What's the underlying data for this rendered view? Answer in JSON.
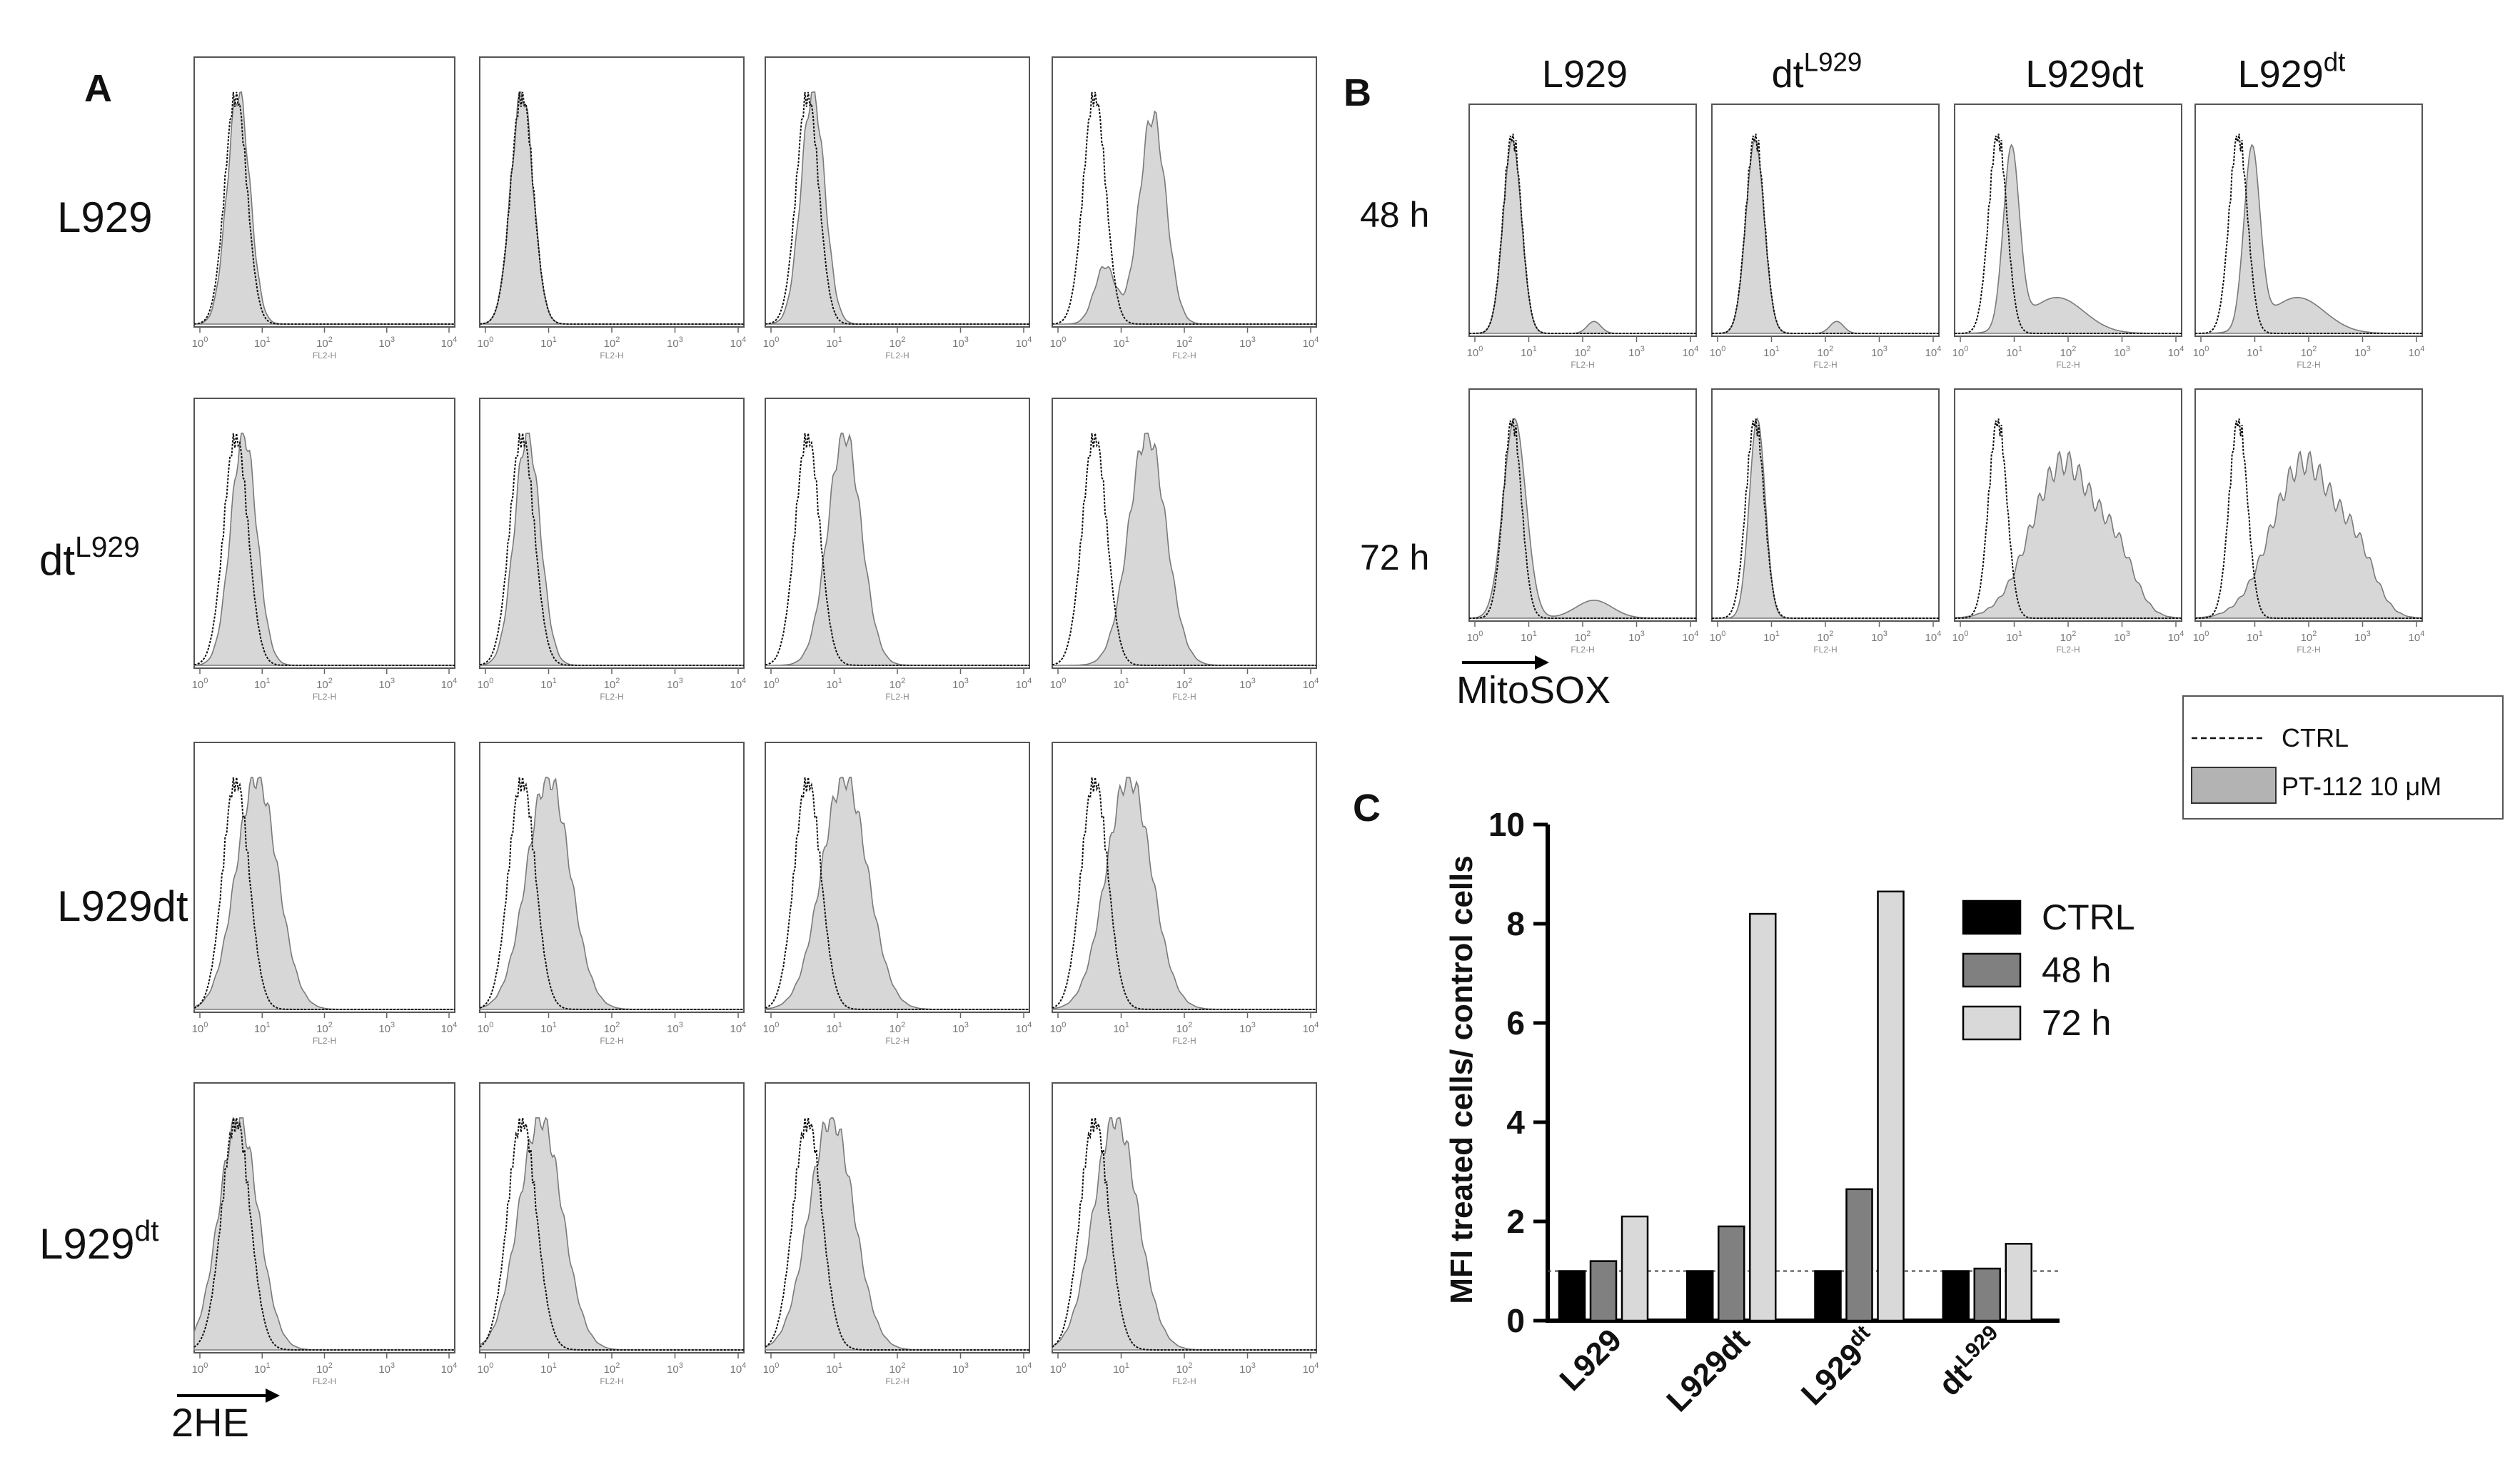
{
  "panel_labels": {
    "a": "A",
    "b": "B",
    "c": "C"
  },
  "panel_a": {
    "rows": [
      {
        "label": "L929",
        "sup": ""
      },
      {
        "label": "dt",
        "sup": "L929"
      },
      {
        "label": "L929dt",
        "sup": ""
      },
      {
        "label": "L929",
        "sup": "dt"
      }
    ],
    "x_axis_label": "FL2-H",
    "tick_bases": [
      "10",
      "10",
      "10",
      "10",
      "10"
    ],
    "tick_exponents": [
      "0",
      "1",
      "2",
      "3",
      "4"
    ],
    "stain_label": "2HE",
    "shifts": [
      [
        0.01,
        0.0,
        0.02,
        0.22
      ],
      [
        0.03,
        0.02,
        0.14,
        0.2
      ],
      [
        0.08,
        0.1,
        0.14,
        0.13
      ],
      [
        0.01,
        0.07,
        0.09,
        0.08
      ]
    ]
  },
  "panel_b": {
    "columns": [
      {
        "label": "L929",
        "sup": ""
      },
      {
        "label": "dt",
        "sup": "L929"
      },
      {
        "label": "L929dt",
        "sup": ""
      },
      {
        "label": "L929",
        "sup": "dt"
      }
    ],
    "rows": [
      "48 h",
      "72 h"
    ],
    "x_axis_label": "FL2-H",
    "stain_label": "MitoSOX"
  },
  "legend_hist": {
    "ctrl": "CTRL",
    "treated": "PT-112 10 μM"
  },
  "chart_data": {
    "type": "bar",
    "title": "",
    "xlabel": "",
    "ylabel": "MFI treated cells/ control cells",
    "ylim": [
      0,
      10
    ],
    "yticks": [
      "0",
      "2",
      "4",
      "6",
      "8",
      "10"
    ],
    "categories": [
      {
        "label": "L929",
        "sup": ""
      },
      {
        "label": "L929dt",
        "sup": ""
      },
      {
        "label": "L929",
        "sup": "dt"
      },
      {
        "label": "dt",
        "sup": "L929"
      }
    ],
    "series": [
      {
        "name": "CTRL",
        "color": "#000000",
        "values": [
          1,
          1,
          1,
          1
        ]
      },
      {
        "name": "48 h",
        "color": "#808080",
        "values": [
          1.2,
          1.9,
          2.65,
          1.05
        ]
      },
      {
        "name": "72 h",
        "color": "#d9d9d9",
        "values": [
          2.1,
          8.2,
          8.65,
          1.55
        ]
      }
    ],
    "reference_line": 1
  }
}
